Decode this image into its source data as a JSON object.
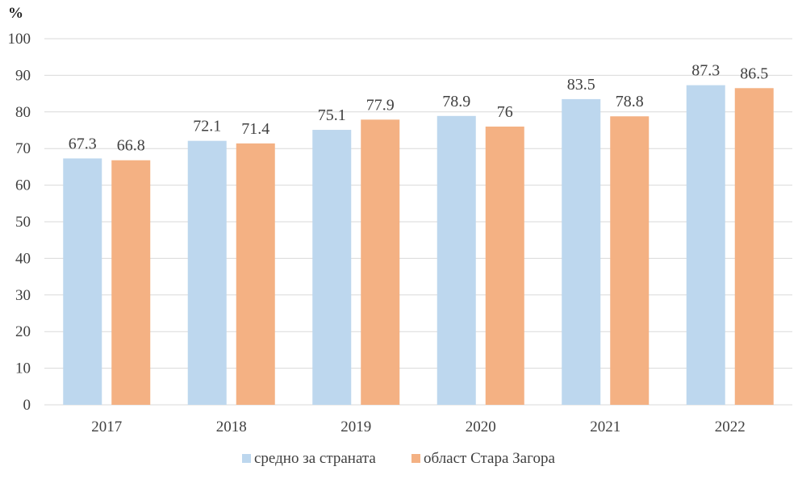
{
  "chart_data": {
    "type": "bar",
    "unit_label": "%",
    "categories": [
      "2017",
      "2018",
      "2019",
      "2020",
      "2021",
      "2022"
    ],
    "series": [
      {
        "name": "средно за страната",
        "color": "#BDD7EE",
        "values": [
          67.3,
          72.1,
          75.1,
          78.9,
          83.5,
          87.3
        ]
      },
      {
        "name": "област Стара Загора",
        "color": "#F4B183",
        "values": [
          66.8,
          71.4,
          77.9,
          76,
          78.8,
          86.5
        ]
      }
    ],
    "ylim": [
      0,
      100
    ],
    "yticks": [
      0,
      10,
      20,
      30,
      40,
      50,
      60,
      70,
      80,
      90,
      100
    ],
    "grid": true,
    "gridline_color": "#D9D9D9",
    "legend_position": "bottom"
  }
}
